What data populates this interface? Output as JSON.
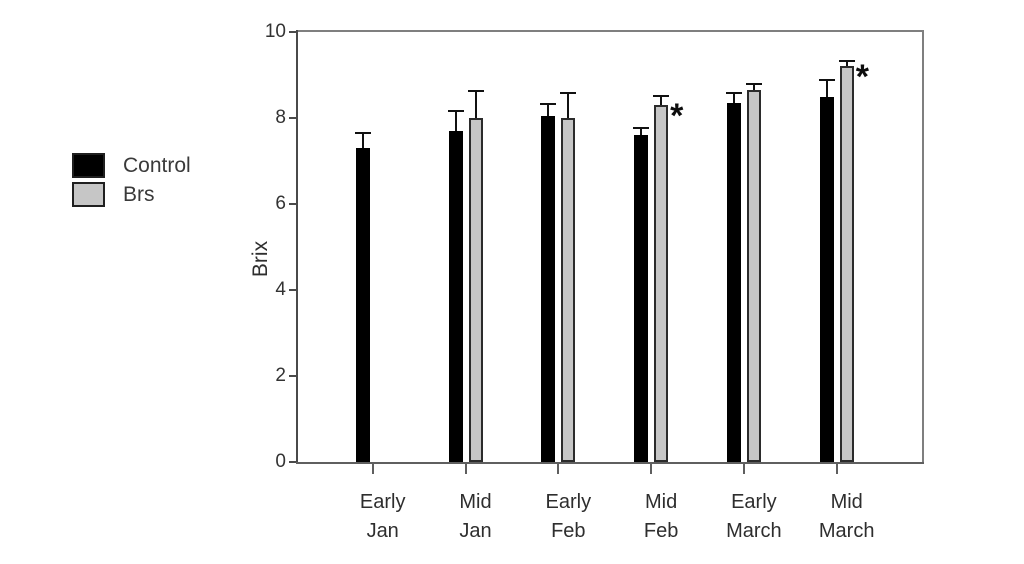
{
  "figure": {
    "background": "#ffffff"
  },
  "legend": {
    "position": "left",
    "items": [
      {
        "label": "Control",
        "color": "#000000",
        "border": "#1f1f1f"
      },
      {
        "label": "Brs",
        "color": "#c6c6c6",
        "border": "#1f1f1f"
      }
    ]
  },
  "chart_data": {
    "type": "bar",
    "title": "",
    "xlabel": "",
    "ylabel": "Brix",
    "ylim": [
      0,
      10
    ],
    "yticks": [
      0,
      2,
      4,
      6,
      8,
      10
    ],
    "grid": false,
    "legend_position": "left",
    "significance_marker": "*",
    "categories": [
      {
        "line1": "Early",
        "line2": "Jan"
      },
      {
        "line1": "Mid",
        "line2": "Jan"
      },
      {
        "line1": "Early",
        "line2": "Feb"
      },
      {
        "line1": "Mid",
        "line2": "Feb"
      },
      {
        "line1": "Early",
        "line2": "March"
      },
      {
        "line1": "Mid",
        "line2": "March"
      }
    ],
    "series": [
      {
        "name": "Control",
        "color": "#000000",
        "values": [
          7.3,
          7.7,
          8.05,
          7.6,
          8.35,
          8.5
        ],
        "errors": [
          0.33,
          0.45,
          0.25,
          0.15,
          0.22,
          0.35
        ],
        "significance": [
          false,
          false,
          false,
          false,
          false,
          false
        ]
      },
      {
        "name": "Brs",
        "color": "#c6c6c6",
        "values": [
          null,
          8.0,
          8.0,
          8.3,
          8.65,
          9.2
        ],
        "errors": [
          null,
          0.6,
          0.55,
          0.2,
          0.12,
          0.1
        ],
        "significance": [
          false,
          false,
          false,
          true,
          false,
          true
        ]
      }
    ]
  }
}
